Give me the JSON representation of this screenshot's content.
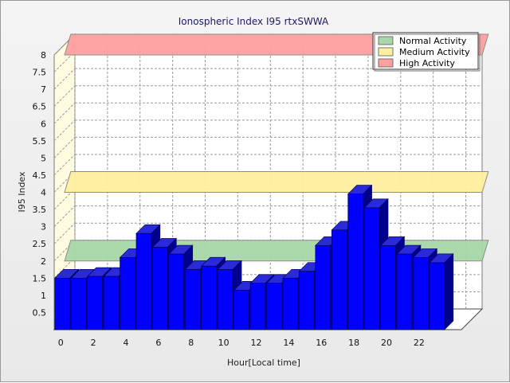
{
  "chart_data": {
    "type": "bar",
    "title": "Ionospheric Index I95 rtxSWWA",
    "xlabel": "Hour[Local time]",
    "ylabel": "I95 Index",
    "ylim": [
      0,
      8
    ],
    "yticks": [
      "0.5",
      "1",
      "1.5",
      "2",
      "2.5",
      "3",
      "3.5",
      "4",
      "4.5",
      "5",
      "5.5",
      "6",
      "6.5",
      "7",
      "7.5",
      "8"
    ],
    "xticks": [
      "0",
      "2",
      "4",
      "6",
      "8",
      "10",
      "12",
      "14",
      "16",
      "18",
      "20",
      "22"
    ],
    "grid": true,
    "three_d": true,
    "legend_position": "top-right",
    "categories": [
      0,
      1,
      2,
      3,
      4,
      5,
      6,
      7,
      8,
      9,
      10,
      11,
      12,
      13,
      14,
      15,
      16,
      17,
      18,
      19,
      20,
      21,
      22,
      23,
      24
    ],
    "series": [
      {
        "color": "#0000ff",
        "values": [
          1.5,
          1.5,
          1.55,
          1.55,
          2.1,
          2.8,
          2.4,
          2.2,
          1.75,
          1.85,
          1.75,
          1.15,
          1.35,
          1.35,
          1.5,
          1.7,
          2.45,
          2.9,
          3.95,
          3.55,
          2.45,
          2.2,
          2.1,
          1.95,
          0
        ]
      }
    ],
    "bands": [
      {
        "name": "Normal Activity",
        "low": 2.0,
        "high": 2.0,
        "color": "#a8d8a8"
      },
      {
        "name": "Medium Activity",
        "low": 4.0,
        "high": 4.0,
        "color": "#fff0a0"
      },
      {
        "name": "High Activity",
        "low": 8.0,
        "high": 8.0,
        "color": "#ffa0a0"
      }
    ],
    "legend": [
      "Normal Activity",
      "Medium Activity",
      "High Activity"
    ]
  }
}
